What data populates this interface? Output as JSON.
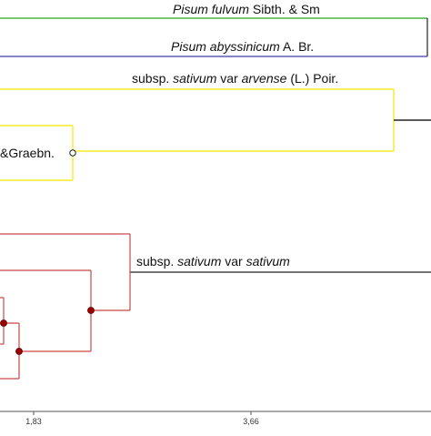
{
  "colors": {
    "green_clade": "#1fa91f",
    "blue_clade": "#3a3ab0",
    "yellow_clade": "#f4ee22",
    "red_clade": "#c94848",
    "node_red": "#a00000",
    "trunk": "#222222",
    "axis": "#555555"
  },
  "labels": {
    "fulvum": {
      "genus": "Pisum",
      "epithet": "fulvum",
      "author": "Sibth. & Sm"
    },
    "abyssinicum": {
      "genus": "Pisum",
      "epithet": "abyssinicum",
      "author": "A. Br."
    },
    "arvense": {
      "prefix": "subsp.",
      "subsp": "sativum",
      "mid": "var",
      "var": "arvense",
      "author": "(L.) Poir."
    },
    "graebn": {
      "text": "&Graebn."
    },
    "sativum": {
      "prefix": "subsp.",
      "subsp": "sativum",
      "mid": "var",
      "var": "sativum"
    }
  },
  "axis": {
    "ticks": [
      {
        "value": 1.83,
        "label": "1,83"
      },
      {
        "value": 3.66,
        "label": "3,66"
      }
    ]
  }
}
